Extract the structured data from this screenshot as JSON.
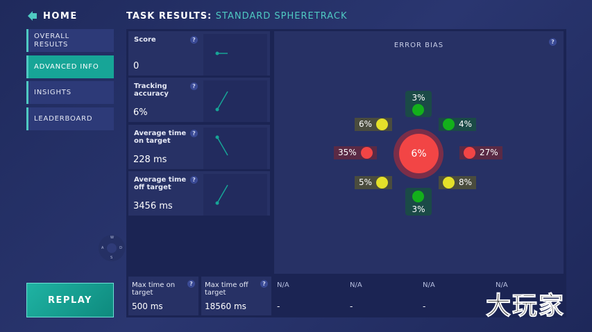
{
  "header": {
    "home_label": "HOME",
    "title_prefix": "TASK RESULTS: ",
    "title_task": "STANDARD SPHERETRACK"
  },
  "nav": {
    "items": [
      {
        "label": "OVERALL RESULTS"
      },
      {
        "label": "ADVANCED INFO"
      },
      {
        "label": "INSIGHTS"
      },
      {
        "label": "LEADERBOARD"
      }
    ],
    "active": "ADVANCED INFO"
  },
  "metrics": [
    {
      "label": "Score",
      "value": "0"
    },
    {
      "label": "Tracking accuracy",
      "value": "6%"
    },
    {
      "label": "Average time on target",
      "value": "228 ms"
    },
    {
      "label": "Average time off target",
      "value": "3456 ms"
    }
  ],
  "bottom_metrics": [
    {
      "label": "Max time on target",
      "value": "500 ms"
    },
    {
      "label": "Max time off target",
      "value": "18560 ms"
    },
    {
      "label": "N/A",
      "value": "-"
    },
    {
      "label": "N/A",
      "value": "-"
    },
    {
      "label": "N/A",
      "value": "-"
    },
    {
      "label": "N/A",
      "value": ""
    }
  ],
  "error_bias": {
    "title": "ERROR BIAS",
    "center": "6%",
    "up": "3%",
    "down": "3%",
    "left": "35%",
    "right": "27%",
    "up_left": "6%",
    "up_right": "4%",
    "down_left": "5%",
    "down_right": "8%"
  },
  "compass": {
    "n": "W",
    "w": "A",
    "e": "D",
    "s": "S"
  },
  "help_icon": "?",
  "replay_label": "REPLAY",
  "watermark": "大玩家",
  "colors": {
    "accent": "#4fc9c2",
    "active_nav": "#17a597",
    "red": "#f24545",
    "yellow": "#e4e02a",
    "green": "#13b01b"
  }
}
